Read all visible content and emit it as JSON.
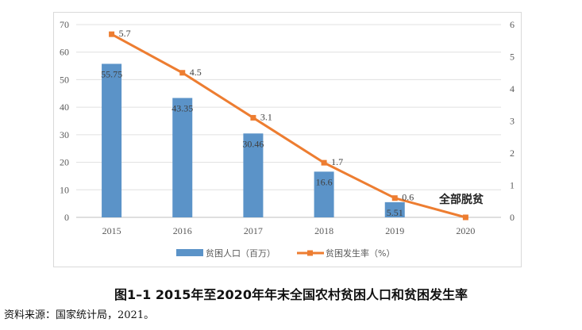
{
  "chart_data": {
    "type": "bar+line",
    "title": "图1–1   2015年至2020年年末全国农村贫困人口和贫困发生率",
    "source": "资料来源：国家统计局，2021。",
    "categories": [
      "2015",
      "2016",
      "2017",
      "2018",
      "2019",
      "2020"
    ],
    "series": [
      {
        "name": "贫困人口（百万）",
        "type": "bar",
        "axis": "left",
        "color": "#5b93c8",
        "values": [
          55.75,
          43.35,
          30.46,
          16.6,
          5.51,
          null
        ],
        "labels": [
          "55.75",
          "43.35",
          "30.46",
          "16.6",
          "5.51",
          ""
        ]
      },
      {
        "name": "贫困发生率（%）",
        "type": "line",
        "axis": "right",
        "color": "#ed7d31",
        "marker": "square",
        "values": [
          5.7,
          4.5,
          3.1,
          1.7,
          0.6,
          0
        ],
        "labels": [
          "5.7",
          "4.5",
          "3.1",
          "1.7",
          "0.6",
          ""
        ]
      }
    ],
    "left_axis": {
      "ylim": [
        0,
        70
      ],
      "ticks": [
        "0",
        "10",
        "20",
        "30",
        "40",
        "50",
        "60",
        "70"
      ]
    },
    "right_axis": {
      "ylim": [
        0,
        6
      ],
      "ticks": [
        "0",
        "1",
        "2",
        "3",
        "4",
        "5",
        "6"
      ]
    },
    "grid": true,
    "legend": "bottom",
    "annotation": "全部脱贫"
  }
}
